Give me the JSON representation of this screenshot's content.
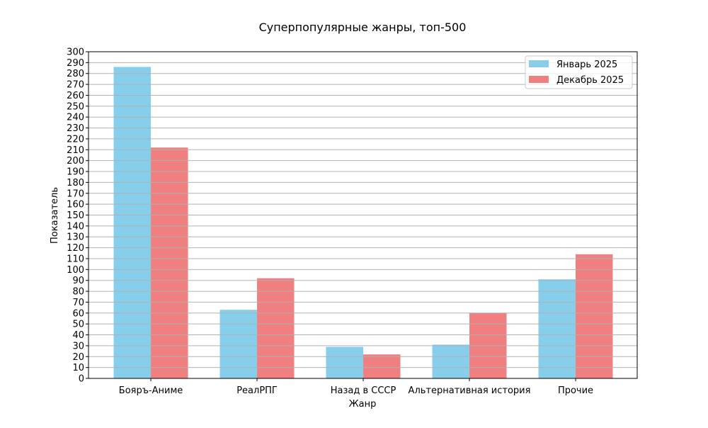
{
  "chart_data": {
    "type": "bar",
    "title": "Суперпопулярные жанры, топ-500",
    "xlabel": "Жанр",
    "ylabel": "Показатель",
    "categories": [
      "Бояръ-Аниме",
      "РеалРПГ",
      "Назад в СССР",
      "Альтернативная история",
      "Прочие"
    ],
    "series": [
      {
        "name": "Январь 2025",
        "color": "#87ceeb",
        "values": [
          286,
          63,
          29,
          31,
          91
        ]
      },
      {
        "name": "Декабрь 2025",
        "color": "#f08080",
        "values": [
          212,
          92,
          22,
          60,
          114
        ]
      }
    ],
    "ylim": [
      0,
      300
    ],
    "ytick_step": 10,
    "grid": "y",
    "legend": "top-right"
  }
}
